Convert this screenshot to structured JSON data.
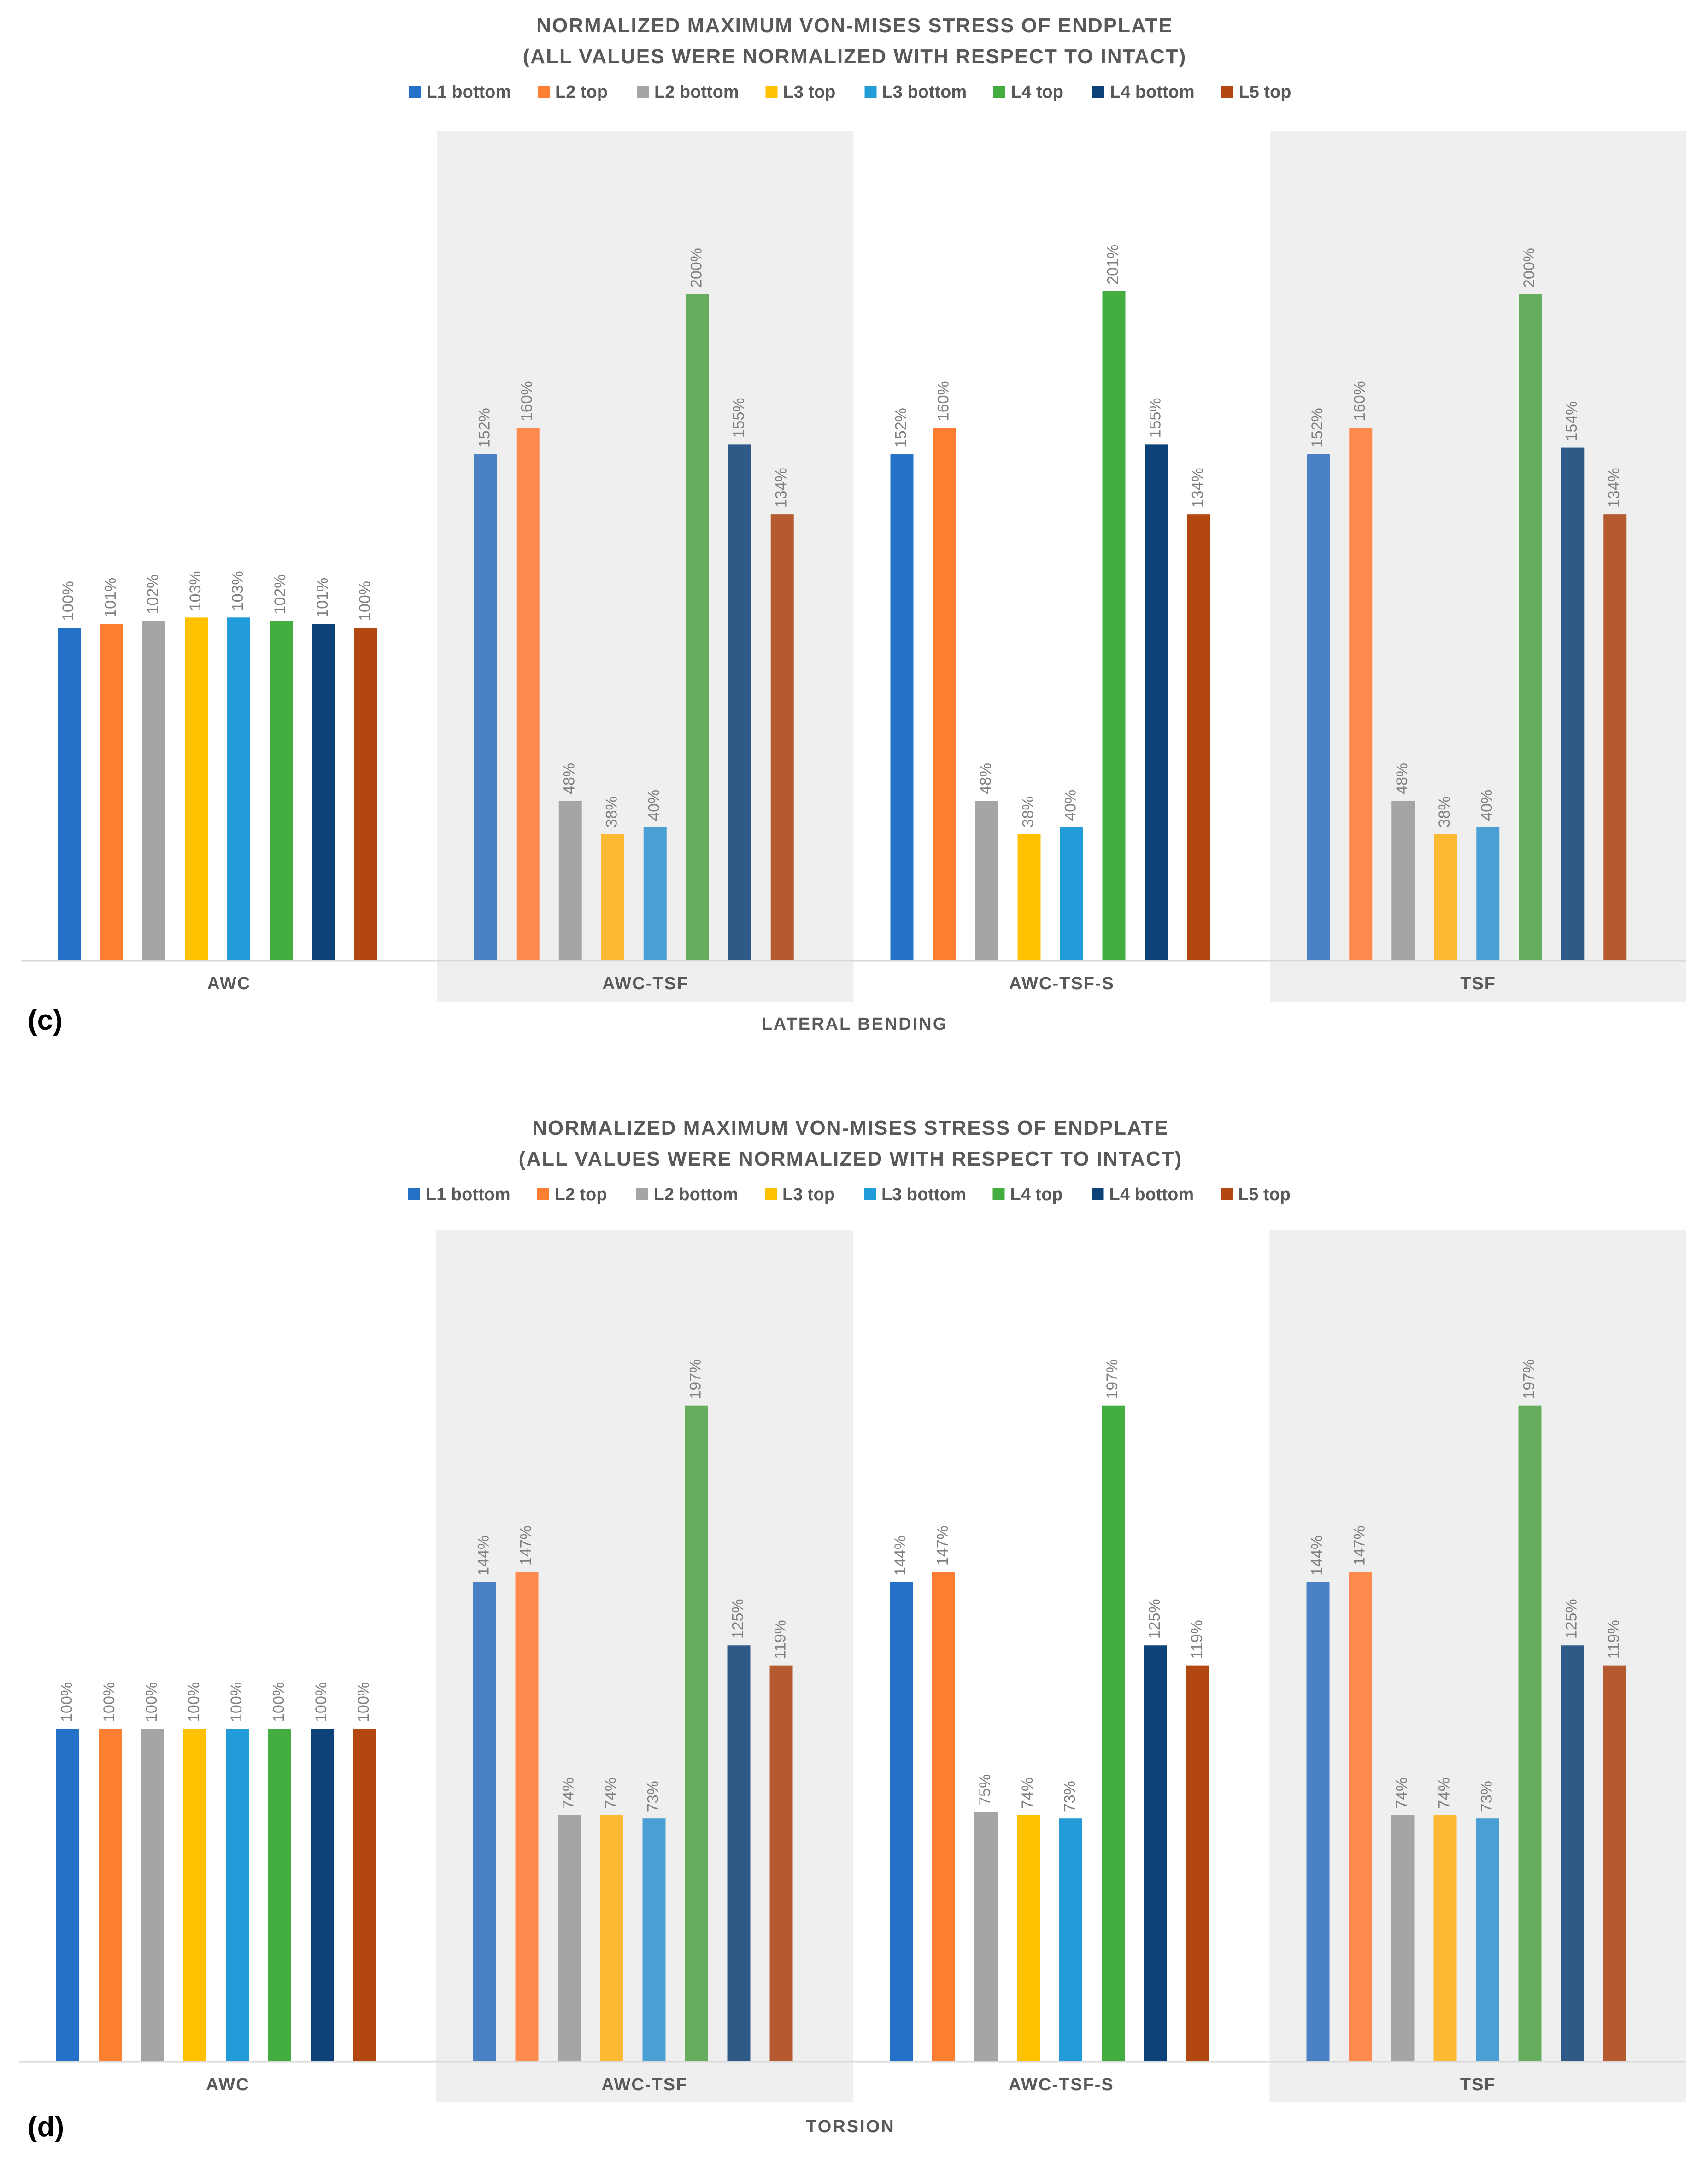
{
  "chart_data": [
    {
      "type": "bar",
      "panel_label": "(c)",
      "title_lines": [
        "NORMALIZED MAXIMUM VON-MISES STRESS OF ENDPLATE",
        "(ALL VALUES WERE NORMALIZED WITH RESPECT TO INTACT)"
      ],
      "xlabel": "LATERAL BENDING",
      "ylabel": "",
      "grid": false,
      "legend_position": "top",
      "ylim": [
        0,
        250
      ],
      "categories": [
        "AWC",
        "AWC-TSF",
        "AWC-TSF-S",
        "TSF"
      ],
      "series": [
        {
          "name": "L1 bottom",
          "values": [
            100,
            152,
            152,
            152
          ],
          "labels": [
            "100%",
            "152%",
            "152%",
            "152%"
          ]
        },
        {
          "name": "L2 top",
          "values": [
            101,
            160,
            160,
            160
          ],
          "labels": [
            "101%",
            "160%",
            "160%",
            "160%"
          ]
        },
        {
          "name": "L2 bottom",
          "values": [
            102,
            48,
            48,
            48
          ],
          "labels": [
            "102%",
            "48%",
            "48%",
            "48%"
          ]
        },
        {
          "name": "L3 top",
          "values": [
            103,
            38,
            38,
            38
          ],
          "labels": [
            "103%",
            "38%",
            "38%",
            "38%"
          ]
        },
        {
          "name": "L3 bottom",
          "values": [
            103,
            40,
            40,
            40
          ],
          "labels": [
            "103%",
            "40%",
            "40%",
            "40%"
          ]
        },
        {
          "name": "L4 top",
          "values": [
            102,
            200,
            201,
            200
          ],
          "labels": [
            "102%",
            "200%",
            "201%",
            "200%"
          ]
        },
        {
          "name": "L4 bottom",
          "values": [
            101,
            155,
            155,
            154
          ],
          "labels": [
            "101%",
            "155%",
            "155%",
            "154%"
          ]
        },
        {
          "name": "L5 top",
          "values": [
            100,
            134,
            134,
            134
          ],
          "labels": [
            "100%",
            "134%",
            "134%",
            "134%"
          ]
        }
      ]
    },
    {
      "type": "bar",
      "panel_label": "(d)",
      "title_lines": [
        "NORMALIZED MAXIMUM VON-MISES STRESS OF ENDPLATE",
        "(ALL VALUES WERE NORMALIZED WITH RESPECT TO INTACT)"
      ],
      "xlabel": "TORSION",
      "ylabel": "",
      "grid": false,
      "legend_position": "top",
      "ylim": [
        0,
        250
      ],
      "categories": [
        "AWC",
        "AWC-TSF",
        "AWC-TSF-S",
        "TSF"
      ],
      "series": [
        {
          "name": "L1 bottom",
          "values": [
            100,
            144,
            144,
            144
          ],
          "labels": [
            "100%",
            "144%",
            "144%",
            "144%"
          ]
        },
        {
          "name": "L2 top",
          "values": [
            100,
            147,
            147,
            147
          ],
          "labels": [
            "100%",
            "147%",
            "147%",
            "147%"
          ]
        },
        {
          "name": "L2 bottom",
          "values": [
            100,
            74,
            75,
            74
          ],
          "labels": [
            "100%",
            "74%",
            "75%",
            "74%"
          ]
        },
        {
          "name": "L3 top",
          "values": [
            100,
            74,
            74,
            74
          ],
          "labels": [
            "100%",
            "74%",
            "74%",
            "74%"
          ]
        },
        {
          "name": "L3 bottom",
          "values": [
            100,
            73,
            73,
            73
          ],
          "labels": [
            "100%",
            "73%",
            "73%",
            "73%"
          ]
        },
        {
          "name": "L4 top",
          "values": [
            100,
            197,
            197,
            197
          ],
          "labels": [
            "100%",
            "197%",
            "197%",
            "197%"
          ]
        },
        {
          "name": "L4 bottom",
          "values": [
            100,
            125,
            125,
            125
          ],
          "labels": [
            "100%",
            "125%",
            "125%",
            "125%"
          ]
        },
        {
          "name": "L5 top",
          "values": [
            100,
            119,
            119,
            119
          ],
          "labels": [
            "100%",
            "119%",
            "119%",
            "119%"
          ]
        }
      ]
    }
  ],
  "colors": {
    "vivid": [
      "#2472c8",
      "#ff7f32",
      "#a5a5a5",
      "#ffc000",
      "#229cd9",
      "#43ae3f",
      "#0d4278",
      "#b34710"
    ],
    "muted": [
      "#4a80c4",
      "#ff8a4d",
      "#a5a5a5",
      "#fbb934",
      "#4aa0d5",
      "#65ad5c",
      "#2f5a87",
      "#b55a2f"
    ],
    "band": "#efefef",
    "axis": "#d9d9d9",
    "text": "#595959"
  }
}
